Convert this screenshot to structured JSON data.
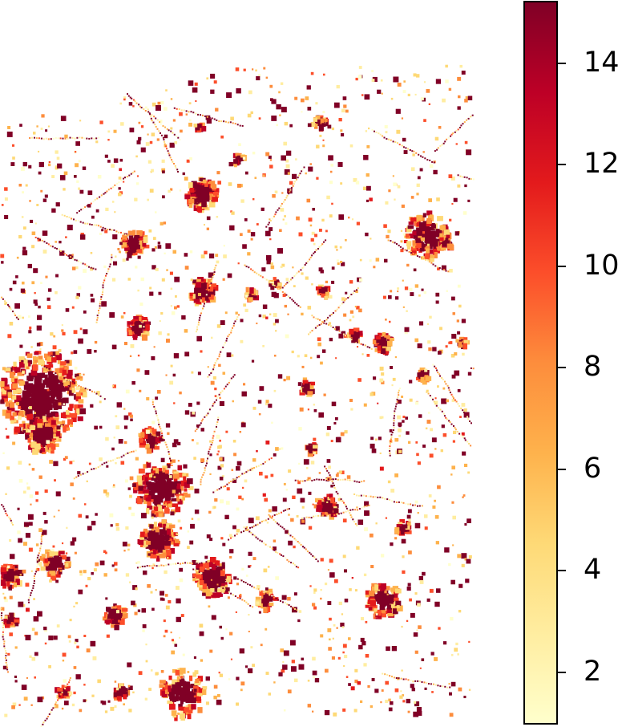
{
  "map": {
    "type": "raster-heatmap",
    "description_colors": {
      "low": "#ffffcc",
      "mid": "#fd8d3c",
      "high": "#800026"
    }
  },
  "colorbar": {
    "min": 1,
    "max": 15.2,
    "colormap": "YlOrRd",
    "stops": [
      "#ffffcc",
      "#ffeda0",
      "#fed976",
      "#feb24c",
      "#fd8d3c",
      "#fc4e2a",
      "#e31a1c",
      "#bd0026",
      "#800026"
    ],
    "ticks": [
      {
        "value": 2,
        "label": "2"
      },
      {
        "value": 4,
        "label": "4"
      },
      {
        "value": 6,
        "label": "6"
      },
      {
        "value": 8,
        "label": "8"
      },
      {
        "value": 10,
        "label": "10"
      },
      {
        "value": 12,
        "label": "12"
      },
      {
        "value": 14,
        "label": "14"
      }
    ]
  }
}
